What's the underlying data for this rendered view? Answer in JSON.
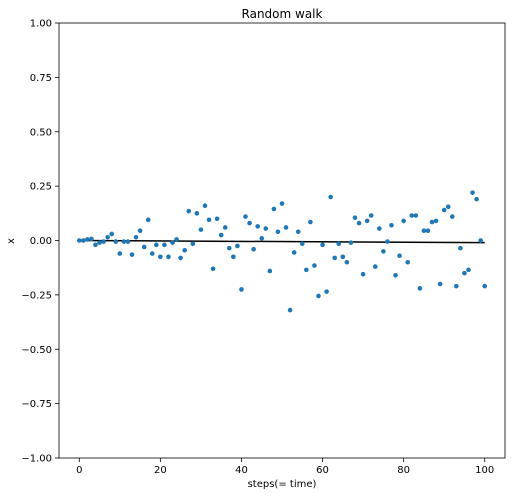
{
  "chart_data": {
    "type": "scatter",
    "title": "Random walk",
    "xlabel": "steps(= time)",
    "ylabel": "x",
    "xlim": [
      -5,
      105
    ],
    "ylim": [
      -1.0,
      1.0
    ],
    "xticks": [
      0,
      20,
      40,
      60,
      80,
      100
    ],
    "xtick_labels": [
      "0",
      "20",
      "40",
      "60",
      "80",
      "100"
    ],
    "yticks": [
      -1.0,
      -0.75,
      -0.5,
      -0.25,
      0.0,
      0.25,
      0.5,
      0.75,
      1.0
    ],
    "ytick_labels": [
      "−1.00",
      "−0.75",
      "−0.50",
      "−0.25",
      "0.00",
      "0.25",
      "0.50",
      "0.75",
      "1.00"
    ],
    "grid": false,
    "point_color": "#1f77b4",
    "line_color": "#000000",
    "points": {
      "x": [
        0,
        1,
        2,
        3,
        4,
        5,
        6,
        7,
        8,
        9,
        10,
        11,
        12,
        13,
        14,
        15,
        16,
        17,
        18,
        19,
        20,
        21,
        22,
        23,
        24,
        25,
        26,
        27,
        28,
        29,
        30,
        31,
        32,
        33,
        34,
        35,
        36,
        37,
        38,
        39,
        40,
        41,
        42,
        43,
        44,
        45,
        46,
        47,
        48,
        49,
        50,
        51,
        52,
        53,
        54,
        55,
        56,
        57,
        58,
        59,
        60,
        61,
        62,
        63,
        64,
        65,
        66,
        67,
        68,
        69,
        70,
        71,
        72,
        73,
        74,
        75,
        76,
        77,
        78,
        79,
        80,
        81,
        82,
        83,
        84,
        85,
        86,
        87,
        88,
        89,
        90,
        91,
        92,
        93,
        94,
        95,
        96,
        97,
        98,
        99,
        100
      ],
      "y": [
        0.0,
        0.0,
        0.005,
        0.007,
        -0.02,
        -0.01,
        -0.005,
        0.015,
        0.03,
        -0.005,
        -0.06,
        -0.005,
        -0.005,
        -0.065,
        0.015,
        0.045,
        -0.03,
        0.095,
        -0.06,
        -0.02,
        -0.075,
        -0.02,
        -0.075,
        -0.01,
        0.005,
        -0.08,
        -0.045,
        0.135,
        -0.015,
        0.125,
        0.05,
        0.16,
        0.095,
        -0.13,
        0.1,
        0.025,
        0.06,
        -0.035,
        -0.075,
        -0.025,
        -0.225,
        0.11,
        0.08,
        -0.04,
        0.065,
        0.01,
        0.055,
        -0.14,
        0.145,
        0.04,
        0.17,
        0.06,
        -0.32,
        -0.055,
        0.04,
        -0.015,
        -0.135,
        0.085,
        -0.115,
        -0.255,
        -0.02,
        -0.235,
        0.2,
        -0.08,
        -0.015,
        -0.075,
        -0.1,
        -0.01,
        0.105,
        0.08,
        -0.155,
        0.09,
        0.115,
        -0.12,
        0.055,
        -0.05,
        -0.005,
        0.07,
        -0.16,
        -0.07,
        0.09,
        -0.1,
        0.115,
        0.115,
        -0.22,
        0.045,
        0.045,
        0.085,
        0.09,
        -0.2,
        0.14,
        0.155,
        0.11,
        -0.21,
        -0.035,
        -0.15,
        -0.135,
        0.22,
        0.19,
        0.0,
        -0.21
      ]
    },
    "line": {
      "x": [
        0,
        100
      ],
      "y": [
        0.0,
        -0.01
      ]
    }
  }
}
